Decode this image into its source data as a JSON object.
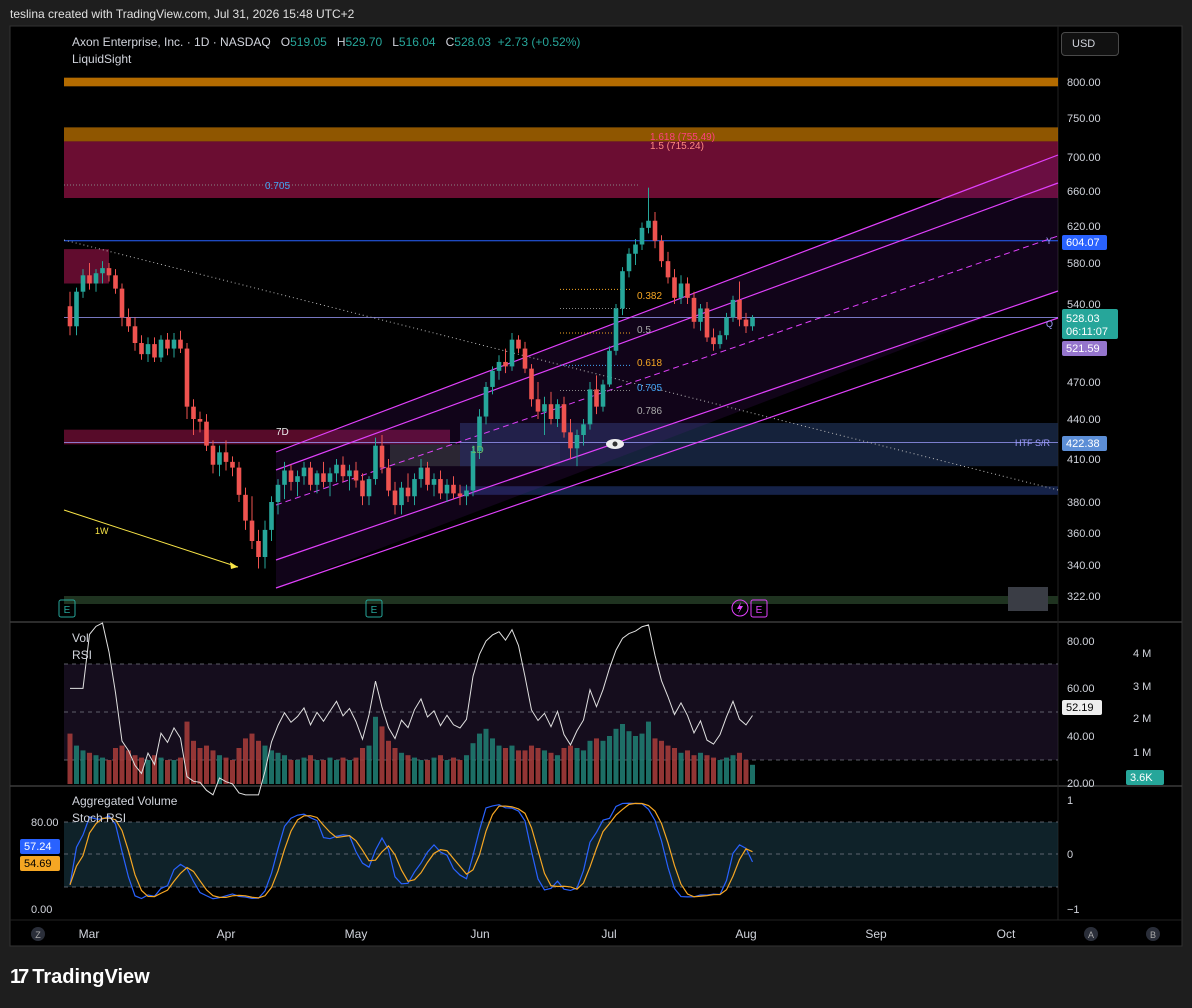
{
  "header": {
    "credit": "teslina created with TradingView.com, Jul 31, 2026 15:48 UTC+2"
  },
  "currency": "USD",
  "brand": {
    "name": "TradingView",
    "mark": "17"
  },
  "legend": {
    "symbol": "Axon Enterprise, Inc. · 1D · NASDAQ",
    "open_label": "O",
    "open": "519.05",
    "high_label": "H",
    "high": "529.70",
    "low_label": "L",
    "low": "516.04",
    "close_label": "C",
    "close": "528.03",
    "change": "+2.73 (+0.52%)",
    "indicator": "LiquidSight"
  },
  "price_badges": {
    "level_604": "604.07",
    "last_price": "528.03",
    "countdown": "06:11:07",
    "level_521": "521.59",
    "htf": "422.38"
  },
  "annotations": {
    "fib_0705_top": "0.705",
    "fib_1618": "1.618 (755.49)",
    "fib_15": "1.5 (715.24)",
    "fib_0382": "0.382",
    "fib_05": "0.5",
    "fib_0618": "0.618",
    "fib_0705": "0.705",
    "fib_0786": "0.786",
    "zone_7d": "7D",
    "zone_1d": "1D",
    "trend_1w": "1W",
    "htf_sr": "HTF S/R",
    "marker_y": "Y",
    "marker_q": "Q",
    "earnings": "E"
  },
  "sub_panes": {
    "vol_title": "Vol",
    "rsi_title": "RSI",
    "rsi_value": "52.19",
    "vol_value": "3.6K",
    "agg_title": "Aggregated Volume",
    "stoch_title": "Stoch RSI",
    "stoch_k": "57.24",
    "stoch_d": "54.69"
  },
  "bottom_icons": {
    "left": "Z",
    "a": "A",
    "b": "B"
  },
  "colors": {
    "up": "#26a69a",
    "down": "#ef5350",
    "channel": "#e040fb",
    "background": "#000000"
  },
  "chart_data": {
    "type": "candlestick",
    "title": "Axon Enterprise, Inc. · 1D · NASDAQ",
    "price_axis_ticks": [
      "800.00",
      "750.00",
      "700.00",
      "660.00",
      "620.00",
      "580.00",
      "540.00",
      "470.00",
      "440.00",
      "410.00",
      "380.00",
      "360.00",
      "340.00",
      "322.00"
    ],
    "x_axis_ticks": [
      "Mar",
      "Apr",
      "May",
      "Jun",
      "Jul",
      "Aug",
      "Sep",
      "Oct"
    ],
    "rsi_axis_ticks": [
      "80.00",
      "60.00",
      "40.00",
      "20.00"
    ],
    "volume_axis_ticks": [
      "4 M",
      "3 M",
      "2 M",
      "1 M"
    ],
    "stoch_axis_ticks": [
      "80.00",
      "0.00"
    ],
    "agg_axis_ticks": [
      "1",
      "0",
      "−1"
    ],
    "candles": [
      {
        "o": 538,
        "h": 552,
        "l": 512,
        "c": 520
      },
      {
        "o": 520,
        "h": 556,
        "l": 512,
        "c": 552
      },
      {
        "o": 552,
        "h": 574,
        "l": 546,
        "c": 568
      },
      {
        "o": 568,
        "h": 580,
        "l": 554,
        "c": 560
      },
      {
        "o": 560,
        "h": 574,
        "l": 552,
        "c": 570
      },
      {
        "o": 570,
        "h": 582,
        "l": 560,
        "c": 575
      },
      {
        "o": 575,
        "h": 580,
        "l": 562,
        "c": 568
      },
      {
        "o": 568,
        "h": 574,
        "l": 550,
        "c": 555
      },
      {
        "o": 555,
        "h": 560,
        "l": 520,
        "c": 528
      },
      {
        "o": 528,
        "h": 536,
        "l": 515,
        "c": 520
      },
      {
        "o": 520,
        "h": 528,
        "l": 498,
        "c": 505
      },
      {
        "o": 505,
        "h": 512,
        "l": 490,
        "c": 495
      },
      {
        "o": 495,
        "h": 510,
        "l": 488,
        "c": 504
      },
      {
        "o": 504,
        "h": 510,
        "l": 488,
        "c": 492
      },
      {
        "o": 492,
        "h": 512,
        "l": 488,
        "c": 508
      },
      {
        "o": 508,
        "h": 514,
        "l": 494,
        "c": 500
      },
      {
        "o": 500,
        "h": 514,
        "l": 492,
        "c": 508
      },
      {
        "o": 508,
        "h": 516,
        "l": 496,
        "c": 500
      },
      {
        "o": 500,
        "h": 505,
        "l": 440,
        "c": 450
      },
      {
        "o": 450,
        "h": 456,
        "l": 428,
        "c": 440
      },
      {
        "o": 440,
        "h": 446,
        "l": 430,
        "c": 438
      },
      {
        "o": 438,
        "h": 444,
        "l": 416,
        "c": 420
      },
      {
        "o": 420,
        "h": 424,
        "l": 400,
        "c": 406
      },
      {
        "o": 406,
        "h": 420,
        "l": 398,
        "c": 415
      },
      {
        "o": 415,
        "h": 424,
        "l": 402,
        "c": 408
      },
      {
        "o": 408,
        "h": 412,
        "l": 398,
        "c": 404
      },
      {
        "o": 404,
        "h": 408,
        "l": 380,
        "c": 385
      },
      {
        "o": 385,
        "h": 390,
        "l": 362,
        "c": 368
      },
      {
        "o": 368,
        "h": 384,
        "l": 350,
        "c": 355
      },
      {
        "o": 355,
        "h": 362,
        "l": 338,
        "c": 345
      },
      {
        "o": 345,
        "h": 368,
        "l": 338,
        "c": 362
      },
      {
        "o": 362,
        "h": 384,
        "l": 355,
        "c": 380
      },
      {
        "o": 380,
        "h": 396,
        "l": 372,
        "c": 392
      },
      {
        "o": 392,
        "h": 408,
        "l": 382,
        "c": 402
      },
      {
        "o": 402,
        "h": 406,
        "l": 388,
        "c": 394
      },
      {
        "o": 394,
        "h": 402,
        "l": 384,
        "c": 398
      },
      {
        "o": 398,
        "h": 408,
        "l": 392,
        "c": 404
      },
      {
        "o": 404,
        "h": 408,
        "l": 388,
        "c": 392
      },
      {
        "o": 392,
        "h": 402,
        "l": 386,
        "c": 400
      },
      {
        "o": 400,
        "h": 408,
        "l": 390,
        "c": 394
      },
      {
        "o": 394,
        "h": 404,
        "l": 384,
        "c": 400
      },
      {
        "o": 400,
        "h": 410,
        "l": 394,
        "c": 406
      },
      {
        "o": 406,
        "h": 412,
        "l": 394,
        "c": 398
      },
      {
        "o": 398,
        "h": 406,
        "l": 388,
        "c": 402
      },
      {
        "o": 402,
        "h": 408,
        "l": 390,
        "c": 395
      },
      {
        "o": 395,
        "h": 400,
        "l": 378,
        "c": 384
      },
      {
        "o": 384,
        "h": 398,
        "l": 378,
        "c": 396
      },
      {
        "o": 396,
        "h": 426,
        "l": 392,
        "c": 420
      },
      {
        "o": 420,
        "h": 428,
        "l": 400,
        "c": 404
      },
      {
        "o": 404,
        "h": 410,
        "l": 384,
        "c": 388
      },
      {
        "o": 388,
        "h": 394,
        "l": 372,
        "c": 378
      },
      {
        "o": 378,
        "h": 394,
        "l": 372,
        "c": 390
      },
      {
        "o": 390,
        "h": 400,
        "l": 380,
        "c": 384
      },
      {
        "o": 384,
        "h": 400,
        "l": 378,
        "c": 396
      },
      {
        "o": 396,
        "h": 410,
        "l": 390,
        "c": 404
      },
      {
        "o": 404,
        "h": 408,
        "l": 388,
        "c": 392
      },
      {
        "o": 392,
        "h": 400,
        "l": 384,
        "c": 396
      },
      {
        "o": 396,
        "h": 402,
        "l": 382,
        "c": 386
      },
      {
        "o": 386,
        "h": 396,
        "l": 380,
        "c": 392
      },
      {
        "o": 392,
        "h": 398,
        "l": 382,
        "c": 386
      },
      {
        "o": 386,
        "h": 392,
        "l": 378,
        "c": 384
      },
      {
        "o": 384,
        "h": 392,
        "l": 378,
        "c": 388
      },
      {
        "o": 388,
        "h": 420,
        "l": 384,
        "c": 416
      },
      {
        "o": 416,
        "h": 448,
        "l": 410,
        "c": 442
      },
      {
        "o": 442,
        "h": 470,
        "l": 436,
        "c": 466
      },
      {
        "o": 466,
        "h": 484,
        "l": 460,
        "c": 480
      },
      {
        "o": 480,
        "h": 494,
        "l": 472,
        "c": 488
      },
      {
        "o": 488,
        "h": 500,
        "l": 478,
        "c": 484
      },
      {
        "o": 484,
        "h": 514,
        "l": 480,
        "c": 508
      },
      {
        "o": 508,
        "h": 512,
        "l": 496,
        "c": 500
      },
      {
        "o": 500,
        "h": 506,
        "l": 478,
        "c": 482
      },
      {
        "o": 482,
        "h": 486,
        "l": 450,
        "c": 456
      },
      {
        "o": 456,
        "h": 470,
        "l": 440,
        "c": 446
      },
      {
        "o": 446,
        "h": 458,
        "l": 428,
        "c": 452
      },
      {
        "o": 452,
        "h": 462,
        "l": 436,
        "c": 440
      },
      {
        "o": 440,
        "h": 456,
        "l": 434,
        "c": 452
      },
      {
        "o": 452,
        "h": 458,
        "l": 426,
        "c": 430
      },
      {
        "o": 430,
        "h": 440,
        "l": 410,
        "c": 418
      },
      {
        "o": 418,
        "h": 432,
        "l": 405,
        "c": 428
      },
      {
        "o": 428,
        "h": 440,
        "l": 420,
        "c": 436
      },
      {
        "o": 436,
        "h": 470,
        "l": 432,
        "c": 464
      },
      {
        "o": 464,
        "h": 476,
        "l": 444,
        "c": 450
      },
      {
        "o": 450,
        "h": 472,
        "l": 446,
        "c": 468
      },
      {
        "o": 468,
        "h": 502,
        "l": 466,
        "c": 498
      },
      {
        "o": 498,
        "h": 540,
        "l": 494,
        "c": 536
      },
      {
        "o": 536,
        "h": 576,
        "l": 530,
        "c": 572
      },
      {
        "o": 572,
        "h": 596,
        "l": 566,
        "c": 590
      },
      {
        "o": 590,
        "h": 606,
        "l": 578,
        "c": 600
      },
      {
        "o": 600,
        "h": 624,
        "l": 594,
        "c": 618
      },
      {
        "o": 618,
        "h": 664,
        "l": 612,
        "c": 626
      },
      {
        "o": 626,
        "h": 636,
        "l": 596,
        "c": 604
      },
      {
        "o": 604,
        "h": 610,
        "l": 576,
        "c": 582
      },
      {
        "o": 582,
        "h": 592,
        "l": 560,
        "c": 566
      },
      {
        "o": 566,
        "h": 574,
        "l": 540,
        "c": 546
      },
      {
        "o": 546,
        "h": 568,
        "l": 540,
        "c": 560
      },
      {
        "o": 560,
        "h": 566,
        "l": 540,
        "c": 546
      },
      {
        "o": 546,
        "h": 552,
        "l": 518,
        "c": 524
      },
      {
        "o": 524,
        "h": 540,
        "l": 516,
        "c": 536
      },
      {
        "o": 536,
        "h": 542,
        "l": 506,
        "c": 510
      },
      {
        "o": 510,
        "h": 518,
        "l": 498,
        "c": 504
      },
      {
        "o": 504,
        "h": 516,
        "l": 500,
        "c": 512
      },
      {
        "o": 512,
        "h": 532,
        "l": 508,
        "c": 528
      },
      {
        "o": 528,
        "h": 548,
        "l": 524,
        "c": 544
      },
      {
        "o": 544,
        "h": 562,
        "l": 520,
        "c": 526
      },
      {
        "o": 526,
        "h": 532,
        "l": 514,
        "c": 520
      },
      {
        "o": 520,
        "h": 530,
        "l": 516,
        "c": 528
      }
    ],
    "volume": [
      2.1,
      1.6,
      1.4,
      1.3,
      1.2,
      1.1,
      1.0,
      1.5,
      1.6,
      1.4,
      1.2,
      1.1,
      1.0,
      1.2,
      1.1,
      1.0,
      1.0,
      1.1,
      2.6,
      1.8,
      1.5,
      1.6,
      1.4,
      1.2,
      1.1,
      1.0,
      1.5,
      1.9,
      2.1,
      1.8,
      1.6,
      1.4,
      1.3,
      1.2,
      1.0,
      1.0,
      1.1,
      1.2,
      1.0,
      1.0,
      1.1,
      1.0,
      1.1,
      1.0,
      1.1,
      1.5,
      1.6,
      2.8,
      2.4,
      1.8,
      1.5,
      1.3,
      1.2,
      1.1,
      1.0,
      1.0,
      1.1,
      1.2,
      1.0,
      1.1,
      1.0,
      1.2,
      1.7,
      2.1,
      2.3,
      1.9,
      1.6,
      1.5,
      1.6,
      1.4,
      1.4,
      1.6,
      1.5,
      1.4,
      1.3,
      1.2,
      1.5,
      1.6,
      1.5,
      1.4,
      1.8,
      1.9,
      1.8,
      2.0,
      2.3,
      2.5,
      2.2,
      2.0,
      2.1,
      2.6,
      1.9,
      1.8,
      1.6,
      1.5,
      1.3,
      1.4,
      1.2,
      1.3,
      1.2,
      1.1,
      1.0,
      1.1,
      1.2,
      1.3,
      1.0,
      0.8
    ]
  }
}
